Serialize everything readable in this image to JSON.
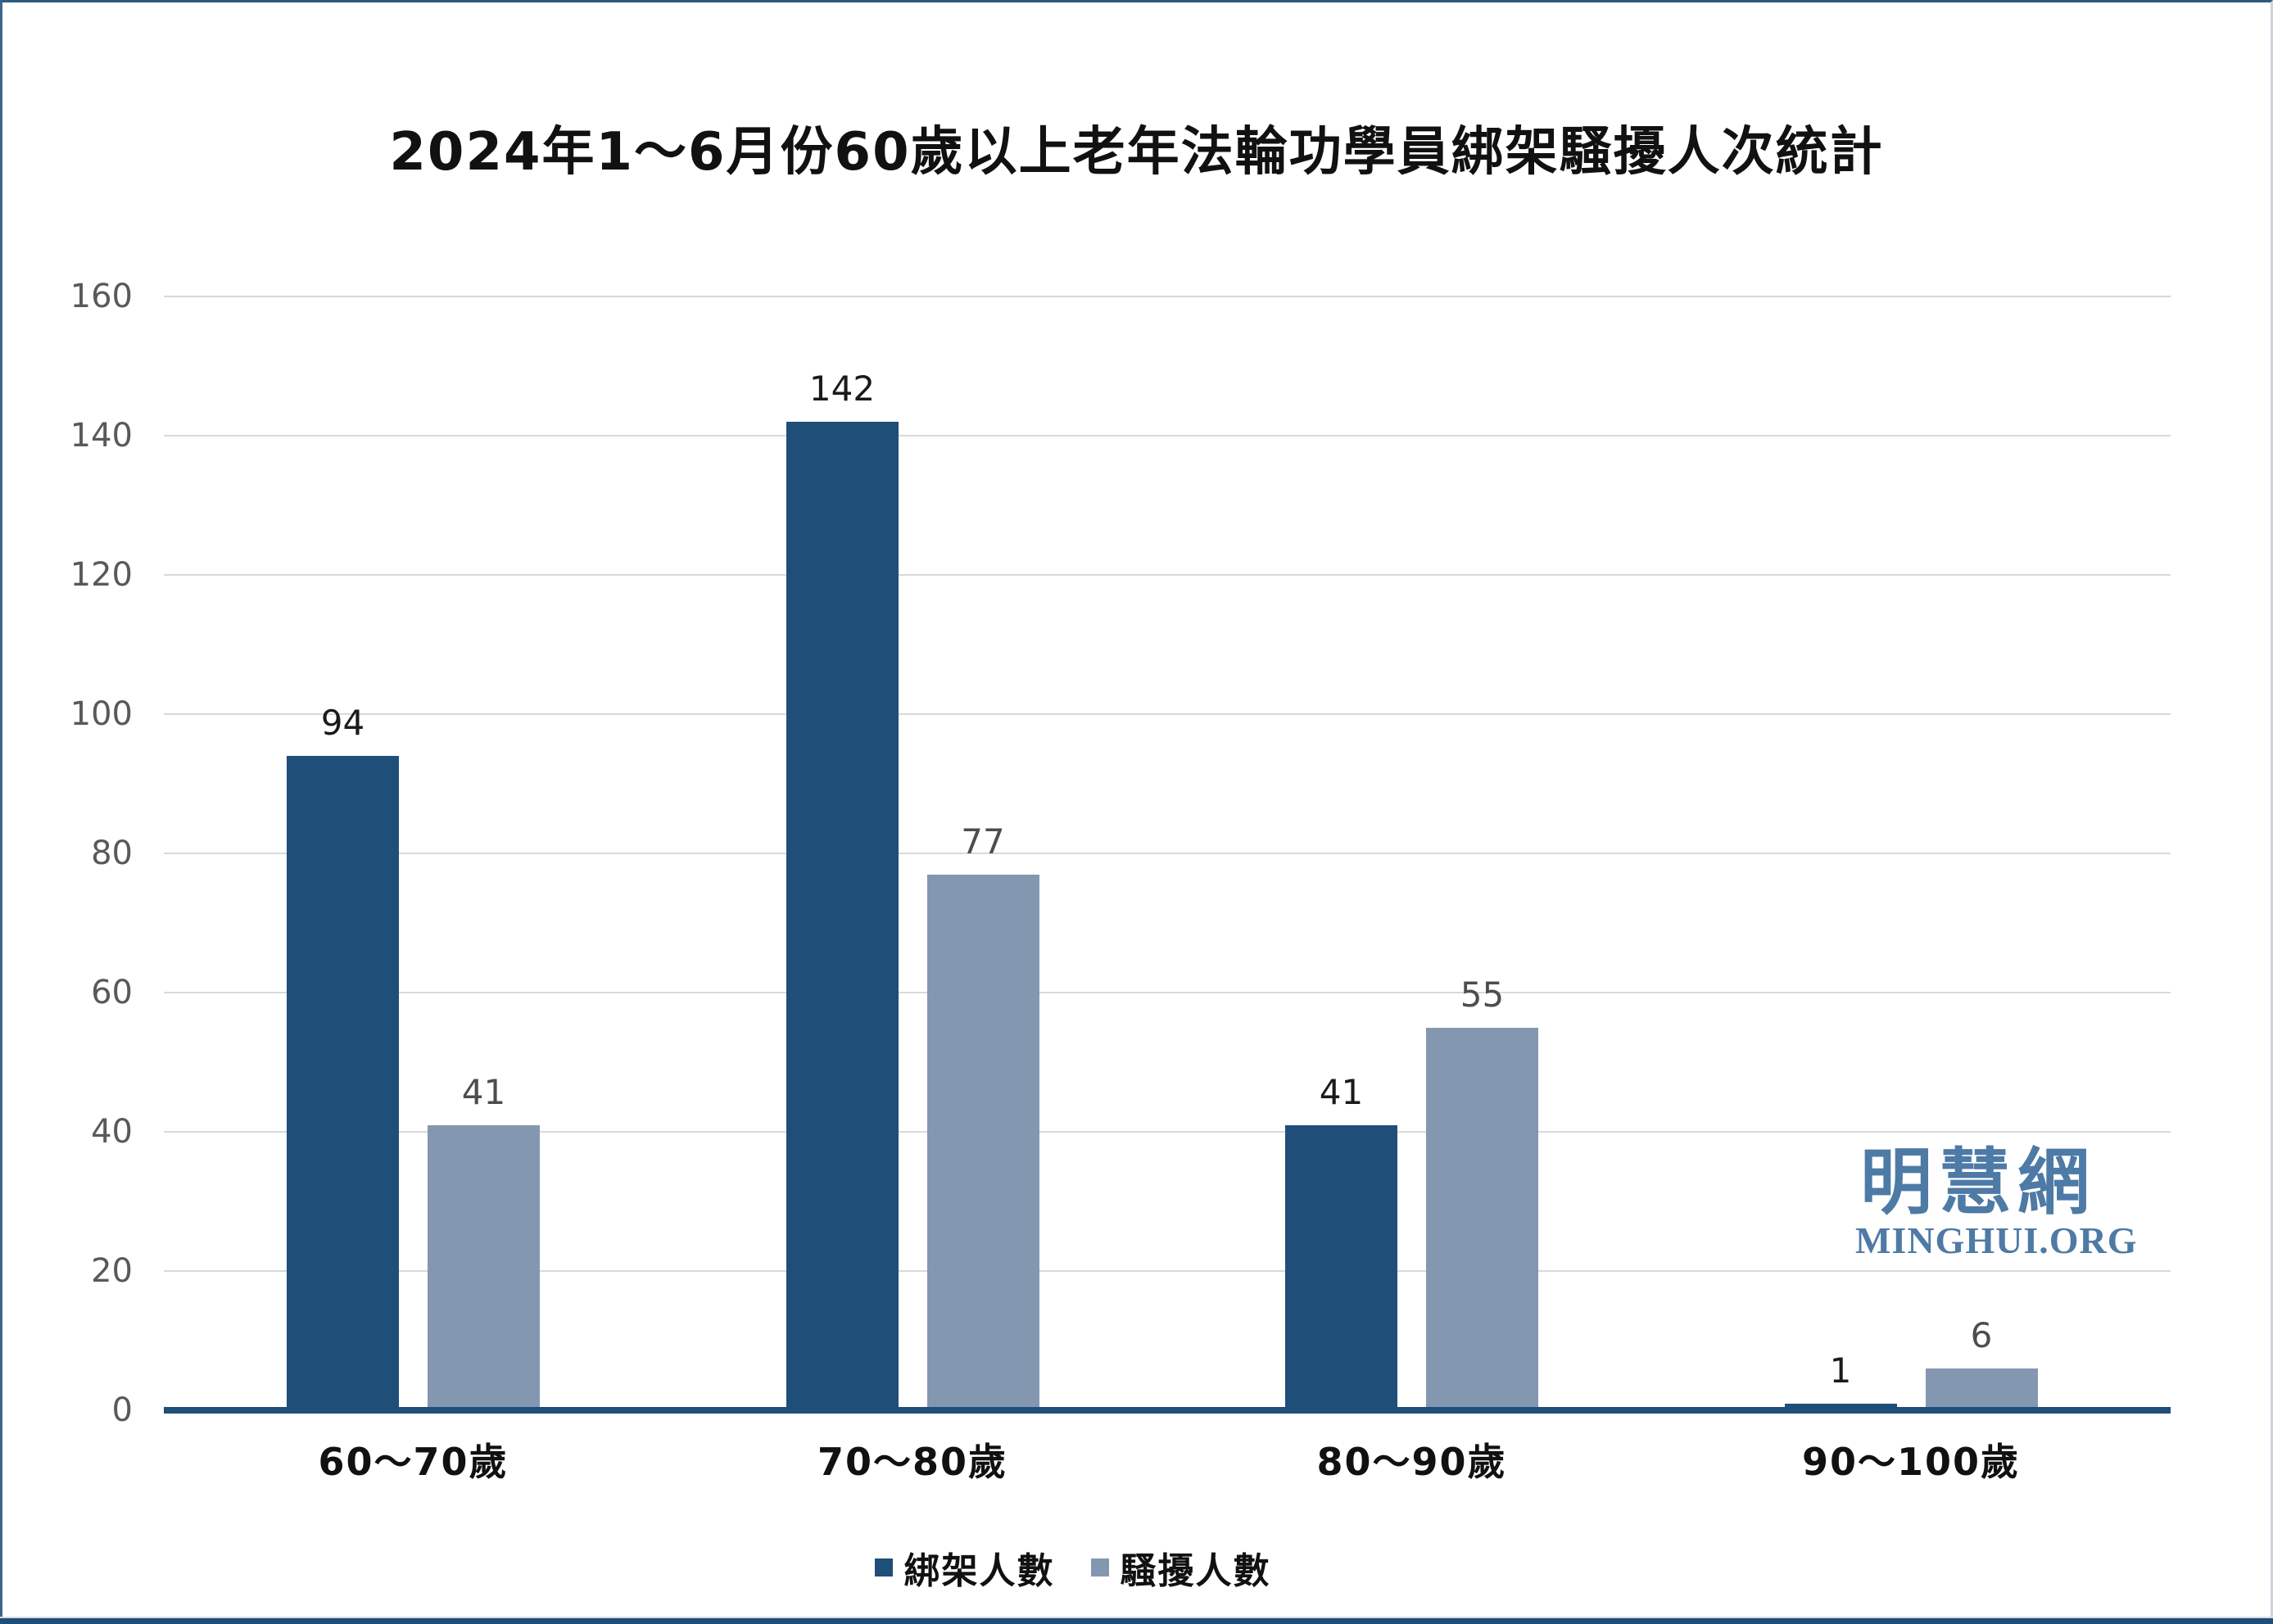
{
  "title": "2024年1～6月份60歲以上老年法輪功學員綁架騷擾人次統計",
  "watermark": {
    "cjk": "明慧網",
    "latin": "MINGHUI.ORG"
  },
  "legend": [
    {
      "label": "綁架人數",
      "color": "#1F4E79"
    },
    {
      "label": "騷擾人數",
      "color": "#8497B0"
    }
  ],
  "colors": {
    "kidnap_series": "#1F4E79",
    "harass_series": "#8497B0",
    "gridline": "#D9D9D9",
    "axis_line": "#1F4E79",
    "ytick_text": "#595959",
    "kidnap_value_label": "#1A1A1A",
    "harass_value_label": "#4D4D4D",
    "watermark_blue": "#4E7AA6"
  },
  "chart_data": {
    "type": "bar",
    "title": "2024年1～6月份60歲以上老年法輪功學員綁架騷擾人次統計",
    "categories": [
      "60～70歲",
      "70～80歲",
      "80～90歲",
      "90～100歲"
    ],
    "series": [
      {
        "name": "綁架人數",
        "color": "#1F4E79",
        "values": [
          94,
          142,
          41,
          1
        ]
      },
      {
        "name": "騷擾人數",
        "color": "#8497B0",
        "values": [
          41,
          77,
          55,
          6
        ]
      }
    ],
    "xlabel": "",
    "ylabel": "",
    "ylim": [
      0,
      160
    ],
    "yticks": [
      0,
      20,
      40,
      60,
      80,
      100,
      120,
      140,
      160
    ],
    "grid": true,
    "legend_position": "bottom",
    "value_labels_shown": true
  }
}
